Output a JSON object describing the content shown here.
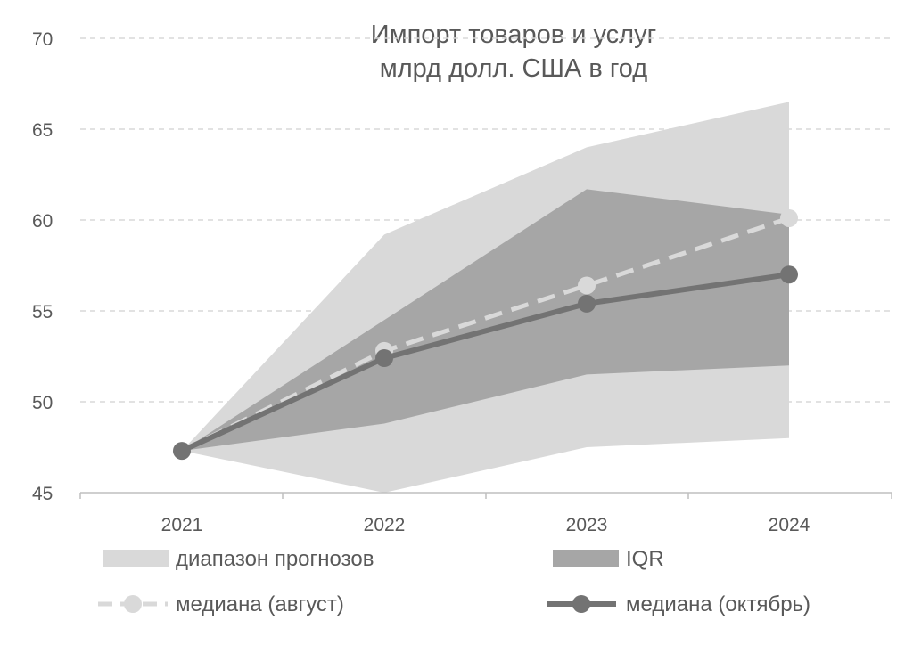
{
  "chart_data": {
    "type": "line",
    "title": [
      "Импорт товаров и услуг",
      "млрд долл. США в год"
    ],
    "xlabel": "",
    "ylabel": "",
    "categories": [
      "2021",
      "2022",
      "2023",
      "2024"
    ],
    "ylim": [
      45,
      70
    ],
    "yticks": [
      45,
      50,
      55,
      60,
      65,
      70
    ],
    "grid": true,
    "legend_position": "bottom",
    "bands": [
      {
        "name": "диапазон прогнозов",
        "color": "#d9d9d9",
        "low": [
          47.3,
          45.0,
          47.5,
          48.0
        ],
        "high": [
          47.3,
          59.2,
          64.0,
          66.5
        ]
      },
      {
        "name": "IQR",
        "color": "#a6a6a6",
        "low": [
          47.3,
          48.8,
          51.5,
          52.0
        ],
        "high": [
          47.3,
          54.5,
          61.7,
          60.3
        ]
      }
    ],
    "series": [
      {
        "name": "медиана (август)",
        "style": "dashed",
        "color": "#d9d9d9",
        "values": [
          47.3,
          52.8,
          56.4,
          60.1
        ]
      },
      {
        "name": "медиана (октябрь)",
        "style": "solid",
        "color": "#737373",
        "values": [
          47.3,
          52.4,
          55.4,
          57.0
        ]
      }
    ],
    "colors": {
      "grid": "#d9d9d9",
      "axis": "#bfbfbf",
      "text": "#595959"
    }
  }
}
